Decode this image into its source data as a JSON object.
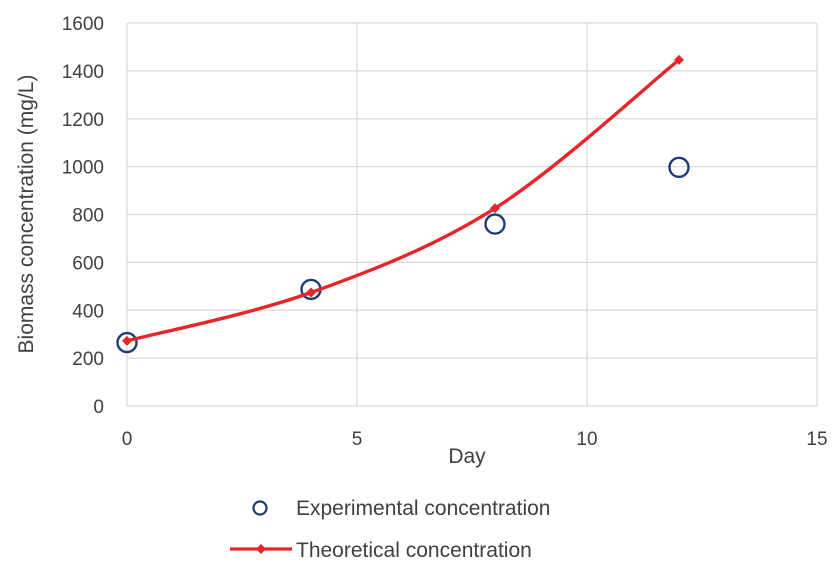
{
  "chart_data": {
    "type": "scatter",
    "xlabel": "Day",
    "ylabel": "Biomass concentration (mg/L)",
    "xlim": [
      0,
      15
    ],
    "ylim": [
      0,
      1600
    ],
    "xticks": [
      0,
      5,
      10,
      15
    ],
    "yticks": [
      0,
      200,
      400,
      600,
      800,
      1000,
      1200,
      1400,
      1600
    ],
    "grid": true,
    "legend": "bottom",
    "series": [
      {
        "name": "Experimental concentration",
        "kind": "markers",
        "marker": "open-circle",
        "color": "#1f3a7a",
        "x": [
          0,
          4,
          8,
          12
        ],
        "y": [
          265,
          487,
          760,
          997
        ]
      },
      {
        "name": "Theoretical concentration",
        "kind": "smooth-line",
        "marker": "diamond",
        "color": "#e8262a",
        "x": [
          0,
          4,
          8,
          12
        ],
        "y": [
          272,
          474,
          826,
          1446
        ]
      }
    ]
  }
}
